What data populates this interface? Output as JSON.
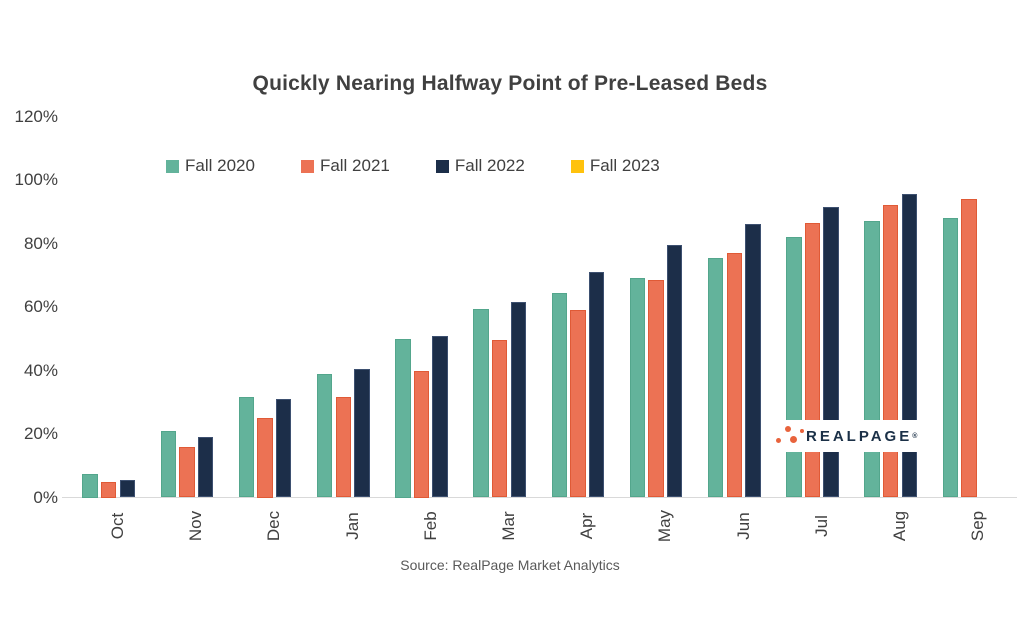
{
  "title": "Quickly Nearing Halfway Point of Pre-Leased Beds",
  "source": "Source: RealPage Market Analytics",
  "watermark": {
    "brand": "REALPAGE",
    "reg": "®"
  },
  "colors": {
    "background": "#FFFFFF",
    "title_text": "#404040",
    "axis_text": "#404040",
    "source_text": "#595959",
    "axis_line": "#D9D9D9",
    "fall_2020": "#63B39B",
    "fall_2021": "#EC7254",
    "fall_2022": "#1C2E49",
    "fall_2023": "#FFC20D",
    "watermark_text": "#1B3047",
    "watermark_dots": "#E8633C"
  },
  "chart_data": {
    "type": "bar",
    "title": "Quickly Nearing Halfway Point of Pre-Leased Beds",
    "xlabel": "",
    "ylabel": "",
    "ylim": [
      0,
      120
    ],
    "grid": false,
    "legend_position": "top",
    "y_ticks": [
      {
        "value": 120,
        "label": "120%"
      },
      {
        "value": 100,
        "label": "100%"
      },
      {
        "value": 80,
        "label": "80%"
      },
      {
        "value": 60,
        "label": "60%"
      },
      {
        "value": 40,
        "label": "40%"
      },
      {
        "value": 20,
        "label": "20%"
      },
      {
        "value": 0,
        "label": "0%"
      }
    ],
    "categories": [
      "Oct",
      "Nov",
      "Dec",
      "Jan",
      "Feb",
      "Mar",
      "Apr",
      "May",
      "Jun",
      "Jul",
      "Aug",
      "Sep"
    ],
    "series": [
      {
        "name": "Fall 2020",
        "color": "#63B39B",
        "border": "#53A68C",
        "values": [
          7.5,
          21,
          31.5,
          39,
          50,
          59.5,
          64.5,
          69,
          75.5,
          82,
          87,
          88
        ]
      },
      {
        "name": "Fall 2021",
        "color": "#EC7254",
        "border": "#E05A36",
        "values": [
          5,
          16,
          25,
          31.5,
          40,
          49.5,
          59,
          68.5,
          77,
          86.5,
          92,
          94
        ]
      },
      {
        "name": "Fall 2022",
        "color": "#1C2E49",
        "border": "#3D5070",
        "values": [
          5.5,
          19,
          31,
          40.5,
          51,
          61.5,
          71,
          79.5,
          86,
          91.5,
          95.5,
          null
        ]
      },
      {
        "name": "Fall 2023",
        "color": "#FFC20D",
        "border": "#E8AE00",
        "values": [
          null,
          null,
          null,
          null,
          null,
          null,
          null,
          null,
          null,
          null,
          null,
          null
        ]
      }
    ]
  }
}
